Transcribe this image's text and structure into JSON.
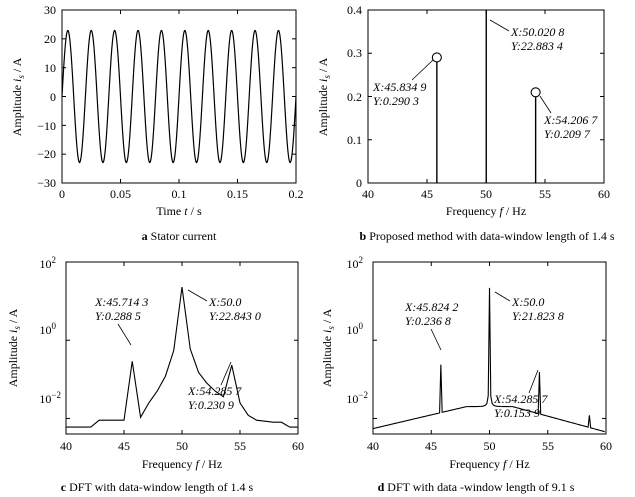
{
  "chart_data": [
    {
      "type": "line",
      "caption_letter": "a",
      "caption_text": "Stator current",
      "xlabel": "Time t / s",
      "ylabel": "Amplitude i_s / A",
      "xlim": [
        0,
        0.2
      ],
      "ylim": [
        -30,
        30
      ],
      "x_ticks": [
        "0",
        "0.05",
        "0.1",
        "0.15",
        "0.2"
      ],
      "y_ticks": [
        "−30",
        "−20",
        "−10",
        "0",
        "10",
        "20",
        "30"
      ],
      "y_scale": "linear",
      "grid": false,
      "series": [
        {
          "amplitude": 22.9,
          "frequency_hz": 50,
          "points_per_second": 5000
        }
      ]
    },
    {
      "type": "stem",
      "caption_letter": "b",
      "caption_text": "Proposed method with data-window length of 1.4 s",
      "xlabel": "Frequency f / Hz",
      "ylabel": "Amplitude i_s / A",
      "xlim": [
        40,
        60
      ],
      "ylim": [
        0,
        0.4
      ],
      "x_ticks": [
        "40",
        "45",
        "50",
        "55",
        "60"
      ],
      "y_ticks": [
        "0",
        "0.1",
        "0.2",
        "0.3",
        "0.4"
      ],
      "y_scale": "linear",
      "grid": false,
      "stems": [
        {
          "x": 45.8349,
          "y": 0.2903,
          "marker": "circle"
        },
        {
          "x": 50.0208,
          "y": 22.8834,
          "marker": "none"
        },
        {
          "x": 54.2067,
          "y": 0.2097,
          "marker": "circle"
        }
      ],
      "annotations": [
        {
          "x_label": "X:45.834 9",
          "y_label": "Y:0.290 3"
        },
        {
          "x_label": "X:50.020 8",
          "y_label": "Y:22.883 4"
        },
        {
          "x_label": "X:54.206 7",
          "y_label": "Y:0.209 7"
        }
      ]
    },
    {
      "type": "line",
      "caption_letter": "c",
      "caption_text": "DFT with data-window length of 1.4 s",
      "xlabel": "Frequency f / Hz",
      "ylabel": "Amplitude i_s / A",
      "xlim": [
        40,
        60
      ],
      "ylim": [
        0.004,
        100
      ],
      "x_ticks": [
        "40",
        "45",
        "50",
        "55",
        "60"
      ],
      "y_ticks": [
        "10^2",
        "10^0",
        "10^-2"
      ],
      "y_scale": "log",
      "grid": false,
      "series": [
        {
          "x": [
            40,
            42.14,
            42.86,
            45.0,
            45.71,
            46.43,
            47.14,
            47.86,
            48.57,
            49.29,
            50.0,
            50.71,
            51.43,
            52.14,
            52.86,
            53.57,
            54.29,
            55.0,
            55.71,
            56.43,
            57.14,
            57.86,
            58.57,
            59.29,
            60
          ],
          "y": [
            0.006,
            0.006,
            0.009,
            0.009,
            0.2885,
            0.0107,
            0.025,
            0.05,
            0.12,
            0.55,
            22.843,
            0.6,
            0.15,
            0.08,
            0.05,
            0.036,
            0.2309,
            0.025,
            0.012,
            0.009,
            0.0085,
            0.008,
            0.008,
            0.006,
            0.006
          ]
        }
      ],
      "annotations": [
        {
          "x_label": "X:45.714 3",
          "y_label": "Y:0.288 5"
        },
        {
          "x_label": "X:50.0",
          "y_label": "Y:22.843 0"
        },
        {
          "x_label": "X:54.285 7",
          "y_label": "Y:0.230 9"
        }
      ]
    },
    {
      "type": "line",
      "caption_letter": "d",
      "caption_text": "DFT with data -window length of 9.1 s",
      "xlabel": "Frequency f / Hz",
      "ylabel": "Amplitude i_s / A",
      "xlim": [
        40,
        60
      ],
      "ylim": [
        0.004,
        100
      ],
      "x_ticks": [
        "40",
        "45",
        "50",
        "55",
        "60"
      ],
      "y_ticks": [
        "10^2",
        "10^0",
        "10^-2"
      ],
      "y_scale": "log",
      "grid": false,
      "series": [
        {
          "baseline_at_40": 0.0055,
          "baseline_at_48": 0.02,
          "baseline_at_60": 0.0045,
          "resolution_hz": 0.1099
        }
      ],
      "peaks": [
        {
          "x": 45.8242,
          "y": 0.2368
        },
        {
          "x": 50.0,
          "y": 21.8238
        },
        {
          "x": 54.2857,
          "y": 0.1539
        },
        {
          "x": 58.6,
          "y": 0.012
        }
      ],
      "annotations": [
        {
          "x_label": "X:45.824 2",
          "y_label": "Y:0.236 8"
        },
        {
          "x_label": "X:50.0",
          "y_label": "Y:21.823 8"
        },
        {
          "x_label": "X:54.285 7",
          "y_label": "Y:0.153 9"
        }
      ]
    }
  ]
}
